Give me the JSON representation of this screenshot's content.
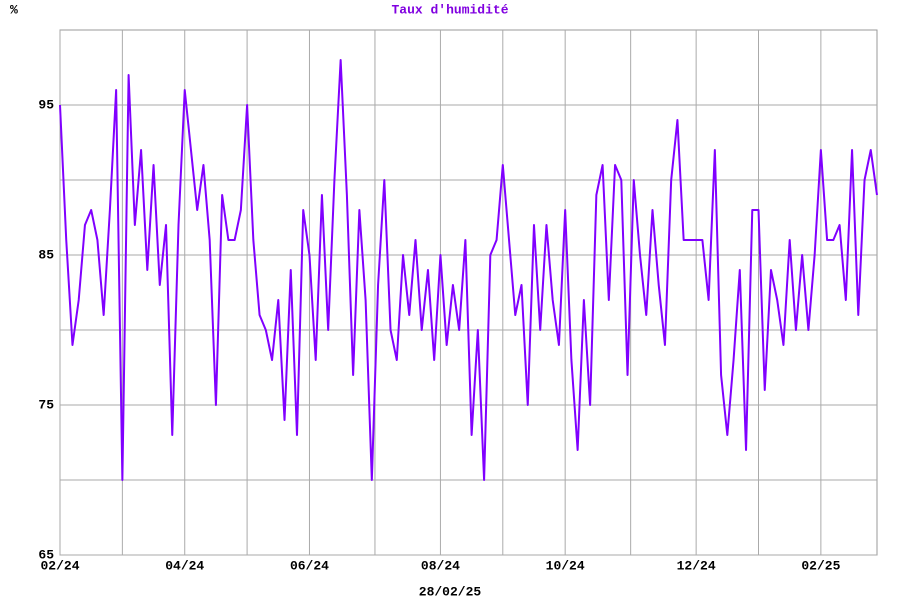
{
  "chart_data": {
    "type": "line",
    "title": "Taux d'humidité",
    "y_unit": "%",
    "date": "28/02/25",
    "color": "#8000ff",
    "grid": true,
    "categories": [
      "02/24",
      null,
      null,
      null,
      null,
      null,
      null,
      null,
      null,
      null,
      null,
      null,
      null,
      null,
      null,
      null,
      null,
      null,
      null,
      null,
      "04/24",
      null,
      null,
      null,
      null,
      null,
      null,
      null,
      null,
      null,
      null,
      null,
      null,
      null,
      null,
      null,
      null,
      null,
      null,
      null,
      "06/24",
      null,
      null,
      null,
      null,
      null,
      null,
      null,
      null,
      null,
      null,
      null,
      null,
      null,
      null,
      null,
      null,
      null,
      null,
      null,
      null,
      "08/24",
      null,
      null,
      null,
      null,
      null,
      null,
      null,
      null,
      null,
      null,
      null,
      null,
      null,
      null,
      null,
      null,
      null,
      null,
      null,
      "10/24",
      null,
      null,
      null,
      null,
      null,
      null,
      null,
      null,
      null,
      null,
      null,
      null,
      null,
      null,
      null,
      null,
      null,
      null,
      null,
      null,
      "12/24",
      null,
      null,
      null,
      null,
      null,
      null,
      null,
      null,
      null,
      null,
      null,
      null,
      null,
      null,
      null,
      null,
      null,
      null,
      null,
      "02/25",
      null,
      null,
      null,
      null,
      null,
      null,
      null,
      null,
      null
    ],
    "values": [
      95,
      86,
      79,
      82,
      87,
      88,
      86,
      81,
      88,
      96,
      70,
      97,
      87,
      92,
      84,
      91,
      83,
      87,
      73,
      87,
      96,
      92,
      88,
      91,
      86,
      75,
      89,
      86,
      86,
      88,
      95,
      86,
      81,
      80,
      78,
      82,
      74,
      84,
      73,
      88,
      85,
      78,
      89,
      80,
      90,
      98,
      89,
      77,
      88,
      82,
      70,
      83,
      90,
      80,
      78,
      85,
      81,
      86,
      80,
      84,
      78,
      85,
      79,
      83,
      80,
      86,
      73,
      80,
      70,
      85,
      86,
      91,
      86,
      81,
      83,
      75,
      87,
      80,
      87,
      82,
      79,
      88,
      78,
      72,
      82,
      75,
      89,
      91,
      82,
      91,
      90,
      77,
      90,
      85,
      81,
      88,
      83,
      79,
      90,
      94,
      86,
      86,
      86,
      86,
      82,
      92,
      77,
      73,
      78,
      84,
      72,
      88,
      88,
      76,
      84,
      82,
      79,
      86,
      80,
      85,
      80,
      85,
      92,
      86,
      86,
      87,
      82,
      92,
      81,
      90,
      92,
      89
    ],
    "ylim": [
      65,
      100
    ],
    "yticks": [
      65,
      {
        "value": 70,
        "label": null
      },
      75,
      {
        "value": 80,
        "label": null
      },
      85,
      {
        "value": 90,
        "label": null
      },
      95
    ]
  }
}
